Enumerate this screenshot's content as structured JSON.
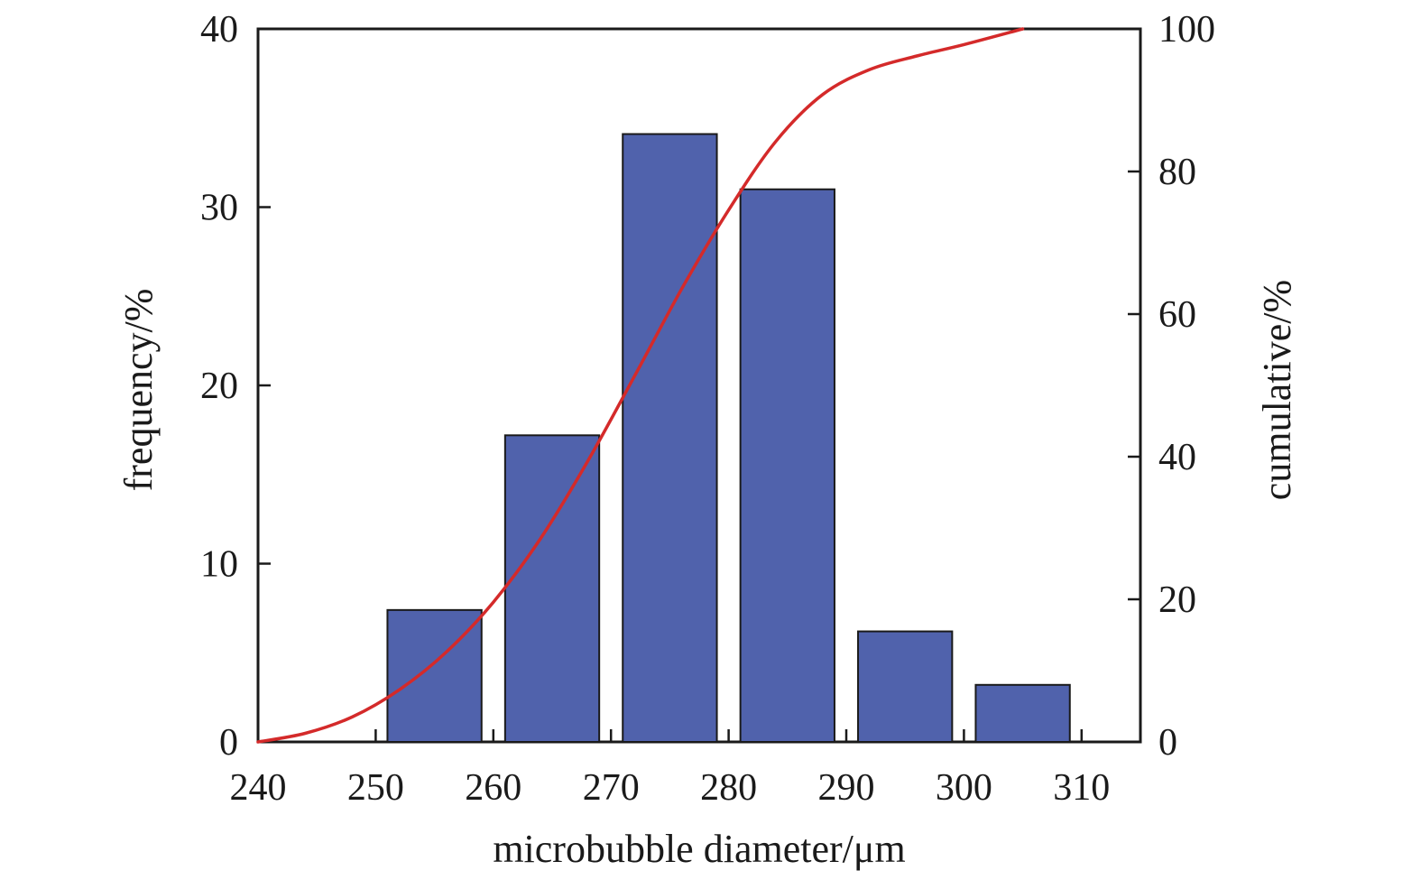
{
  "chart_data": {
    "type": "bar",
    "title": "",
    "xlabel": "microbubble diameter/μm",
    "ylabel": "frequency/%",
    "y2label": "cumulative/%",
    "xlim": [
      240,
      315
    ],
    "ylim": [
      0,
      40
    ],
    "y2lim": [
      0,
      100
    ],
    "x_ticks": [
      240,
      250,
      260,
      270,
      280,
      290,
      300,
      310
    ],
    "y_ticks": [
      0,
      10,
      20,
      30,
      40
    ],
    "y2_ticks": [
      0,
      20,
      40,
      60,
      80,
      100
    ],
    "grid": false,
    "bar_color": "#5062AC",
    "line_color": "#D42A2A",
    "series": [
      {
        "type": "bar",
        "axis": "left",
        "bins": [
          [
            251,
            259
          ],
          [
            261,
            269
          ],
          [
            271,
            279
          ],
          [
            281,
            289
          ],
          [
            291,
            299
          ],
          [
            301,
            309
          ]
        ],
        "values": [
          7.4,
          17.2,
          34.1,
          31.0,
          6.2,
          3.2
        ]
      },
      {
        "type": "line",
        "axis": "right",
        "x": [
          240,
          244,
          248,
          252,
          256,
          260,
          264,
          268,
          272,
          276,
          280,
          284,
          288,
          292,
          296,
          300,
          305
        ],
        "y": [
          0,
          1.2,
          3.5,
          7.3,
          12.6,
          19.6,
          28.5,
          39.3,
          51.3,
          63.5,
          74.6,
          84.2,
          90.8,
          94.3,
          96.2,
          97.8,
          100
        ]
      }
    ]
  }
}
